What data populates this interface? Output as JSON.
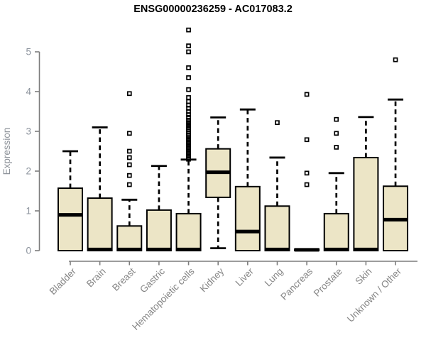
{
  "chart_data": {
    "type": "boxplot",
    "title": "ENSG00000236259 - AC017083.2",
    "xlabel": "",
    "ylabel": "Expression",
    "ylim": [
      0,
      5
    ],
    "yticks": [
      0,
      1,
      2,
      3,
      4,
      5
    ],
    "grid": false,
    "legend": "none",
    "categories": [
      "Bladder",
      "Brain",
      "Breast",
      "Gastric",
      "Hematopoietic cells",
      "Kidney",
      "Liver",
      "Lung",
      "Pancreas",
      "Prostate",
      "Skin",
      "Unknown / Other"
    ],
    "series": [
      {
        "name": "Bladder",
        "whisker_low": null,
        "q1": 0,
        "median": 0.9,
        "q3": 1.57,
        "whisker_high": 2.5,
        "outliers": []
      },
      {
        "name": "Brain",
        "whisker_low": null,
        "q1": 0,
        "median": 0.03,
        "q3": 1.32,
        "whisker_high": 3.1,
        "outliers": []
      },
      {
        "name": "Breast",
        "whisker_low": null,
        "q1": 0,
        "median": 0.03,
        "q3": 0.62,
        "whisker_high": 1.28,
        "outliers": [
          1.66,
          1.89,
          2.16,
          2.34,
          2.5,
          2.95,
          3.95
        ]
      },
      {
        "name": "Gastric",
        "whisker_low": null,
        "q1": 0,
        "median": 0.03,
        "q3": 1.02,
        "whisker_high": 2.13,
        "outliers": []
      },
      {
        "name": "Hematopoietic cells",
        "whisker_low": null,
        "q1": 0,
        "median": 0.03,
        "q3": 0.93,
        "whisker_high": 2.29,
        "outliers": [
          2.3,
          2.34,
          2.38,
          2.42,
          2.46,
          2.5,
          2.54,
          2.58,
          2.62,
          2.66,
          2.7,
          2.74,
          2.78,
          2.82,
          2.86,
          2.9,
          2.95,
          3.0,
          3.05,
          3.1,
          3.16,
          3.22,
          3.28,
          3.35,
          3.42,
          3.5,
          3.58,
          3.66,
          3.75,
          3.85,
          4.05,
          4.35,
          4.6,
          5.0,
          5.15,
          5.55
        ]
      },
      {
        "name": "Kidney",
        "whisker_low": 0.06,
        "q1": 1.34,
        "median": 1.97,
        "q3": 2.56,
        "whisker_high": 3.35,
        "outliers": []
      },
      {
        "name": "Liver",
        "whisker_low": null,
        "q1": 0,
        "median": 0.48,
        "q3": 1.61,
        "whisker_high": 3.55,
        "outliers": []
      },
      {
        "name": "Lung",
        "whisker_low": null,
        "q1": 0,
        "median": 0.03,
        "q3": 1.12,
        "whisker_high": 2.34,
        "outliers": [
          3.22
        ]
      },
      {
        "name": "Pancreas",
        "whisker_low": null,
        "q1": 0,
        "median": 0.02,
        "q3": 0.04,
        "whisker_high": null,
        "outliers": [
          1.66,
          1.95,
          2.79,
          3.93
        ]
      },
      {
        "name": "Prostate",
        "whisker_low": null,
        "q1": 0,
        "median": 0.03,
        "q3": 0.93,
        "whisker_high": 1.95,
        "outliers": [
          2.6,
          2.95,
          3.3
        ]
      },
      {
        "name": "Skin",
        "whisker_low": null,
        "q1": 0,
        "median": 0.03,
        "q3": 2.34,
        "whisker_high": 3.36,
        "outliers": []
      },
      {
        "name": "Unknown / Other",
        "whisker_low": null,
        "q1": 0,
        "median": 0.78,
        "q3": 1.62,
        "whisker_high": 3.8,
        "outliers": [
          4.8
        ]
      }
    ]
  },
  "colors": {
    "box_fill": "#ece5c6",
    "box_stroke": "#000000",
    "median": "#000000",
    "whisker": "#000000",
    "outlier": "#000000",
    "axis_line": "#7d7d7d",
    "y_tick_label": "#8c939d",
    "x_category_label": "#858585",
    "title_color": "#000000",
    "background": "#ffffff"
  }
}
